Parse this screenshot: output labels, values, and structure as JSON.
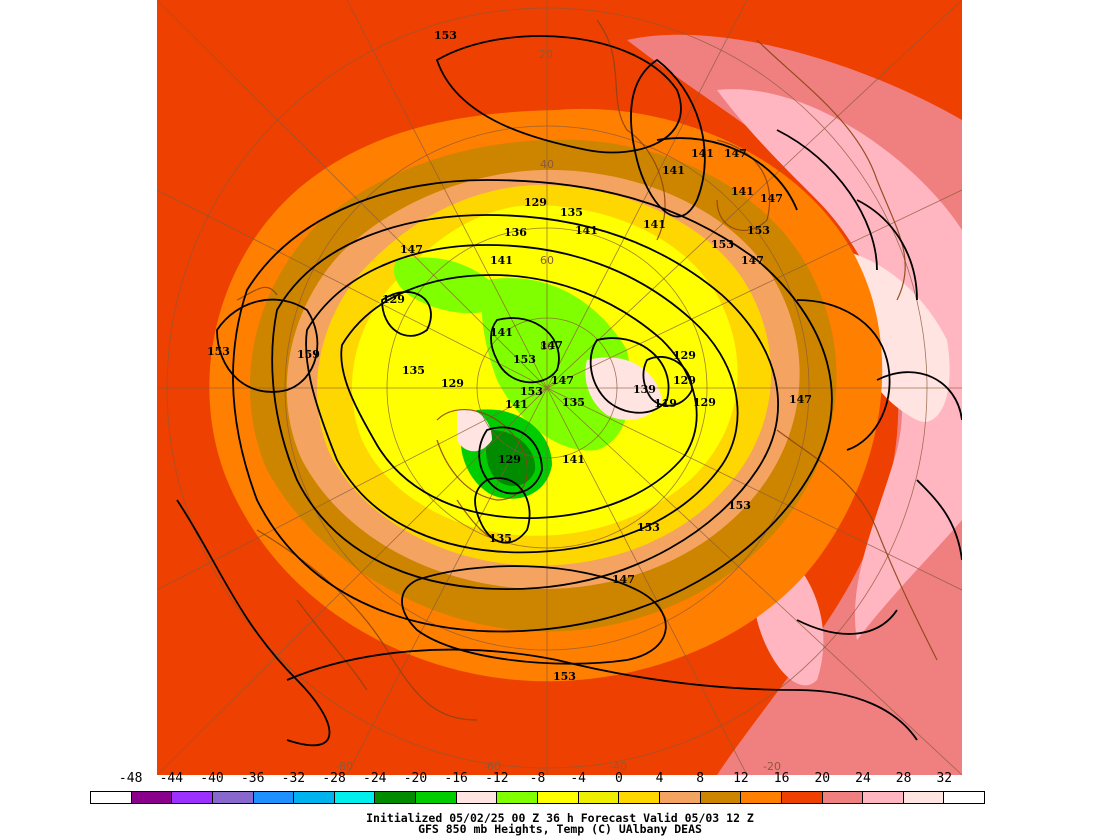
{
  "map": {
    "lat_labels": [
      "20",
      "40",
      "60",
      "80",
      "-80",
      "-60",
      "-40",
      "-20"
    ],
    "contour_labels": [
      "153",
      "141",
      "141",
      "147",
      "141",
      "147",
      "141",
      "129",
      "135",
      "136",
      "141",
      "141",
      "153",
      "153",
      "147",
      "147",
      "129",
      "141",
      "153",
      "159",
      "153",
      "135",
      "129",
      "141",
      "153",
      "147",
      "147",
      "147",
      "129",
      "129",
      "139",
      "135",
      "119",
      "129",
      "129",
      "141",
      "153",
      "153",
      "147",
      "135",
      "153"
    ]
  },
  "colorbar": {
    "ticks": [
      "-48",
      "-44",
      "-40",
      "-36",
      "-32",
      "-28",
      "-24",
      "-20",
      "-16",
      "-12",
      "-8",
      "-4",
      "0",
      "4",
      "8",
      "12",
      "16",
      "20",
      "24",
      "28",
      "32"
    ],
    "colors": [
      "#ffffff",
      "#8b008b",
      "#9b30ff",
      "#8968cd",
      "#1e90ff",
      "#00b2ee",
      "#00eeee",
      "#008b00",
      "#00cd00",
      "#ffe4e1",
      "#7fff00",
      "#ffff00",
      "#eeee00",
      "#ffd700",
      "#f4a460",
      "#cd8500",
      "#ff7f00",
      "#ee4000",
      "#f08080",
      "#ffb6c1",
      "#ffe4e1",
      "#ffffff"
    ]
  },
  "caption": {
    "line1": "Initialized 05/02/25 00 Z  36 h Forecast Valid 05/03 12 Z",
    "line2": "GFS 850 mb  Heights, Temp (C)      UAlbany DEAS"
  }
}
